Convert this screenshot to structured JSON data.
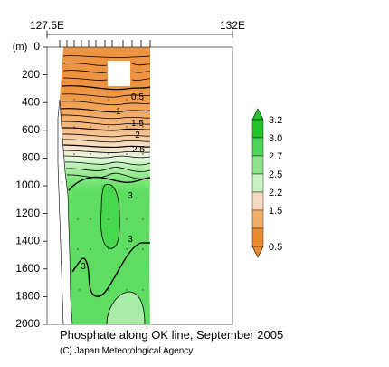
{
  "chart_data": {
    "type": "heatmap",
    "title": "Phosphate along OK line, September 2005",
    "credit": "(C) Japan Meteorological Agency",
    "x_ticks": [
      "127.5E",
      "132E"
    ],
    "x_range": [
      "127.5E",
      "132E"
    ],
    "ylabel": "(m)",
    "y_ticks": [
      0,
      200,
      400,
      600,
      800,
      1000,
      1200,
      1400,
      1600,
      1800,
      2000
    ],
    "ylim": [
      0,
      2000
    ],
    "y_reversed": true,
    "contour_labels": [
      "0.5",
      "1",
      "1.5",
      "2",
      "2.5",
      "3",
      "3",
      "3"
    ],
    "colorbar": {
      "labels": [
        "3.2",
        "3.0",
        "2.7",
        "2.5",
        "2.2",
        "1.5",
        "0.5"
      ],
      "colors": [
        "#22c42a",
        "#4fd45a",
        "#8ee28a",
        "#c9f1c2",
        "#f6d9bf",
        "#f0ae6a",
        "#e98a2e"
      ]
    },
    "colors": {
      "orange": "#ee9440",
      "light_orange": "#f5bd86",
      "beige": "#f9e2cb",
      "light_green": "#b8efb0",
      "green": "#5fdd62",
      "deep_green": "#2fcf3a"
    }
  }
}
